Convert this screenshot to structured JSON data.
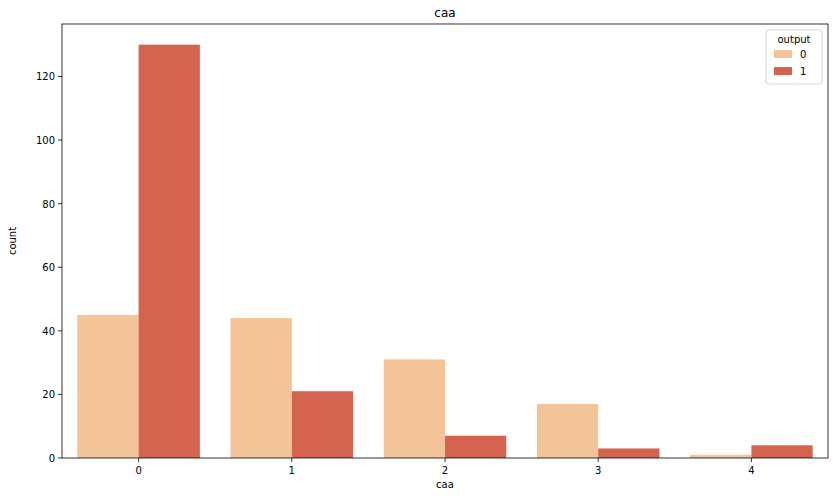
{
  "chart_data": {
    "type": "bar",
    "title": "caa",
    "x_label": "caa",
    "y_label": "count",
    "legend_title": "output",
    "legend": "upper right",
    "categories": [
      "0",
      "1",
      "2",
      "3",
      "4"
    ],
    "series": [
      {
        "name": "0",
        "color": "#f2c497",
        "values": [
          45,
          44,
          31,
          17,
          1
        ]
      },
      {
        "name": "1",
        "color": "#d4634f",
        "values": [
          130,
          21,
          7,
          3,
          4
        ]
      }
    ],
    "ylim": [
      0,
      136.5
    ],
    "yticks": [
      0,
      20,
      40,
      60,
      80,
      100,
      120
    ],
    "grid": false
  }
}
